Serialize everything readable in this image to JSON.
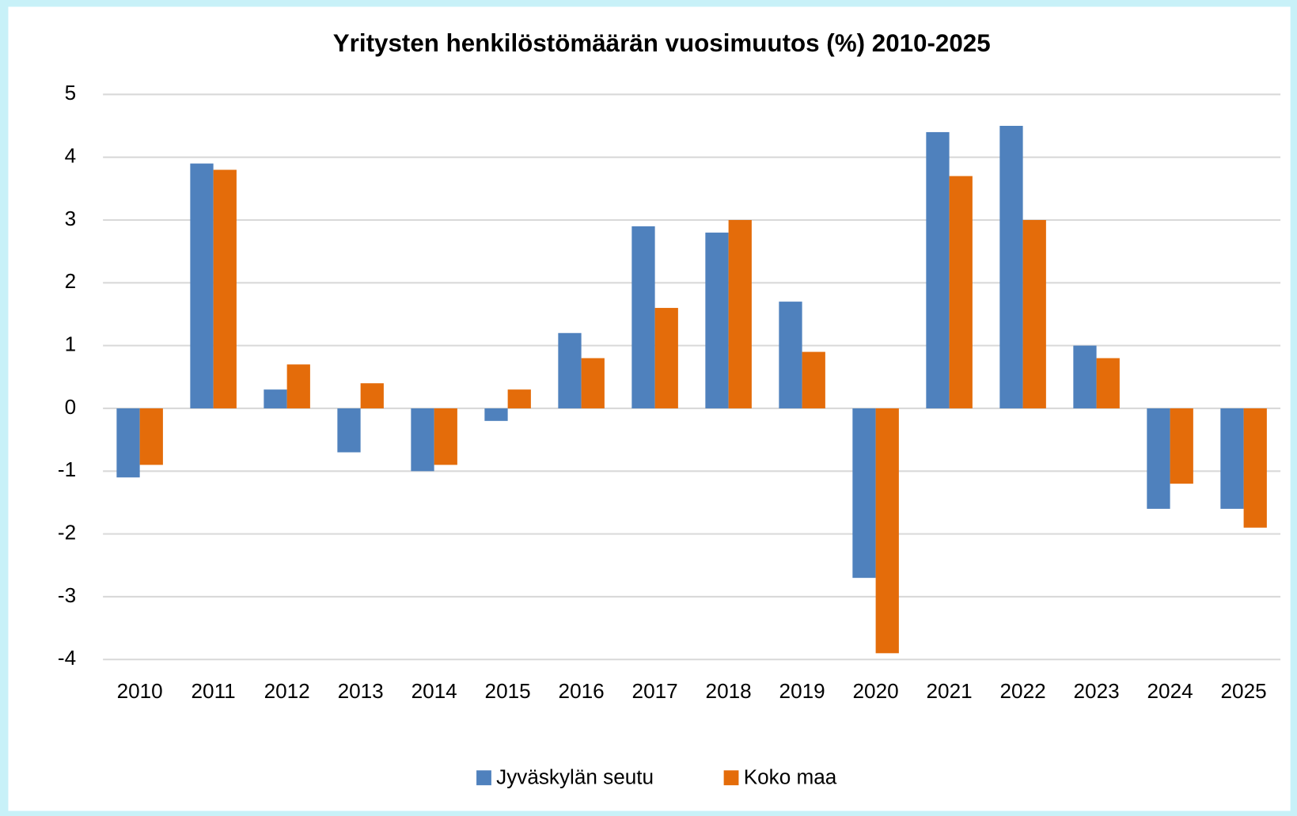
{
  "chart_data": {
    "type": "bar",
    "title": "Yritysten henkilöstömäärän vuosimuutos (%) 2010-2025",
    "categories": [
      "2010",
      "2011",
      "2012",
      "2013",
      "2014",
      "2015",
      "2016",
      "2017",
      "2018",
      "2019",
      "2020",
      "2021",
      "2022",
      "2023",
      "2024",
      "2025"
    ],
    "series": [
      {
        "name": "Jyväskylän seutu",
        "color": "#4f81bd",
        "values": [
          -1.1,
          3.9,
          0.3,
          -0.7,
          -1.0,
          -0.2,
          1.2,
          2.9,
          2.8,
          1.7,
          -2.7,
          4.4,
          4.5,
          1.0,
          -1.6,
          -1.6
        ]
      },
      {
        "name": "Koko maa",
        "color": "#e46c0a",
        "values": [
          -0.9,
          3.8,
          0.7,
          0.4,
          -0.9,
          0.3,
          0.8,
          1.6,
          3.0,
          0.9,
          -3.9,
          3.7,
          3.0,
          0.8,
          -1.2,
          -1.9
        ]
      }
    ],
    "ylim": [
      -4,
      5
    ],
    "yticks": [
      -4,
      -3,
      -2,
      -1,
      0,
      1,
      2,
      3,
      4,
      5
    ],
    "grid": true,
    "legend": "bottom"
  }
}
